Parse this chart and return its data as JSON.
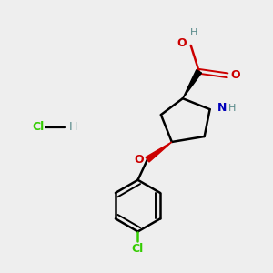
{
  "background_color": "#eeeeee",
  "bond_color": "#000000",
  "N_color": "#0000bb",
  "O_color": "#cc0000",
  "Cl_color": "#33cc00",
  "H_color": "#558888",
  "figsize": [
    3.0,
    3.0
  ],
  "dpi": 100,
  "xlim": [
    0,
    10
  ],
  "ylim": [
    0,
    10
  ]
}
